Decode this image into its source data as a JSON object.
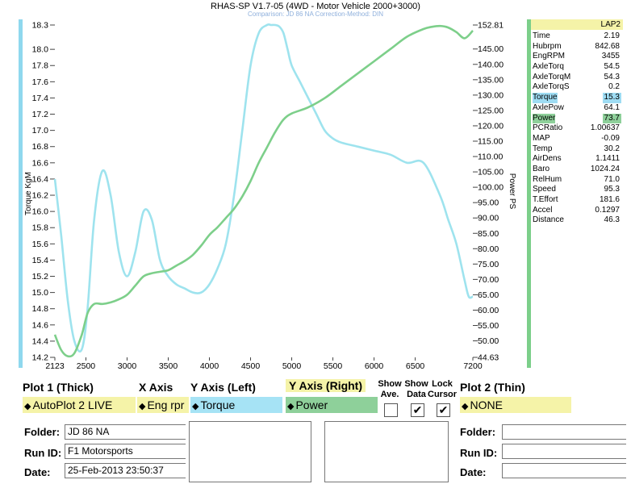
{
  "window": {
    "title": "RHAS-SP V1.7-05   (4WD - Motor Vehicle 2000+3000)",
    "subtitle": "Comparison: JD 86 NA    Correction-Method: DIN"
  },
  "chart_data": {
    "type": "line",
    "ylabel": "Torque KgM",
    "y2label": "Power PS",
    "xlim": [
      2123,
      7200
    ],
    "ylim": [
      14.2,
      18.3
    ],
    "y2lim": [
      44.63,
      152.81
    ],
    "x_ticks": [
      "2123",
      "2500",
      "3000",
      "3500",
      "4000",
      "4500",
      "5000",
      "5500",
      "6000",
      "6500",
      "7200"
    ],
    "y_ticks": [
      "18.3",
      "18.0",
      "17.8",
      "17.6",
      "17.4",
      "17.2",
      "17.0",
      "16.8",
      "16.6",
      "16.4",
      "16.2",
      "16.0",
      "15.8",
      "15.6",
      "15.4",
      "15.2",
      "15.0",
      "14.8",
      "14.6",
      "14.4",
      "14.2"
    ],
    "y2_ticks": [
      "152.81",
      "145.00",
      "140.00",
      "135.00",
      "130.00",
      "125.00",
      "120.00",
      "115.00",
      "110.00",
      "105.00",
      "100.00",
      "95.00",
      "90.00",
      "85.00",
      "80.00",
      "75.00",
      "70.00",
      "65.00",
      "60.00",
      "55.00",
      "50.00",
      "44.63"
    ],
    "series": [
      {
        "axis": "left",
        "color": "#9ee3ee",
        "x": [
          2123,
          2200,
          2280,
          2360,
          2450,
          2520,
          2600,
          2700,
          2800,
          2900,
          3000,
          3100,
          3200,
          3300,
          3400,
          3500,
          3600,
          3700,
          3800,
          3900,
          4000,
          4100,
          4200,
          4300,
          4400,
          4500,
          4600,
          4700,
          4750,
          4800,
          4850,
          4900,
          4950,
          5000,
          5100,
          5200,
          5300,
          5400,
          5500,
          5600,
          5800,
          6000,
          6200,
          6400,
          6600,
          6800,
          6900,
          7000,
          7100,
          7150,
          7200
        ],
        "values": [
          16.4,
          15.7,
          14.9,
          14.4,
          14.3,
          14.8,
          15.9,
          16.5,
          16.2,
          15.5,
          15.2,
          15.5,
          16.0,
          15.9,
          15.4,
          15.2,
          15.1,
          15.05,
          15.0,
          15.0,
          15.1,
          15.3,
          15.6,
          16.2,
          17.0,
          17.8,
          18.2,
          18.3,
          18.3,
          18.3,
          18.28,
          18.2,
          18.0,
          17.8,
          17.6,
          17.4,
          17.2,
          17.0,
          16.9,
          16.85,
          16.8,
          16.75,
          16.7,
          16.6,
          16.6,
          16.2,
          15.9,
          15.6,
          15.15,
          14.95,
          14.95
        ]
      },
      {
        "axis": "right",
        "color": "#7dcf8a",
        "x": [
          2123,
          2200,
          2280,
          2360,
          2450,
          2520,
          2600,
          2700,
          2800,
          2900,
          3000,
          3100,
          3200,
          3300,
          3400,
          3500,
          3600,
          3700,
          3800,
          3900,
          4000,
          4100,
          4200,
          4300,
          4400,
          4500,
          4600,
          4700,
          4800,
          4900,
          5000,
          5200,
          5400,
          5600,
          5800,
          6000,
          6200,
          6400,
          6600,
          6700,
          6800,
          6900,
          7000,
          7100,
          7200
        ],
        "values": [
          52,
          47,
          45,
          46,
          52,
          59,
          62,
          62,
          62.5,
          63.5,
          65,
          68,
          71,
          72,
          72.5,
          73,
          74.5,
          76,
          78,
          81,
          84.5,
          87,
          90,
          93,
          97,
          102,
          108,
          113,
          118,
          122,
          124,
          126,
          129,
          133,
          137,
          141,
          145,
          149,
          151.5,
          152.2,
          152.5,
          152,
          150.5,
          148.5,
          151
        ]
      }
    ]
  },
  "readout": {
    "lap": "LAP2",
    "rows": [
      {
        "k": "Time",
        "v": "2.19"
      },
      {
        "k": "Hubrpm",
        "v": "842.68"
      },
      {
        "k": "EngRPM",
        "v": "3455"
      },
      {
        "k": "AxleTorq",
        "v": "54.5"
      },
      {
        "k": "AxleTorqM",
        "v": "54.3"
      },
      {
        "k": "AxleTorqS",
        "v": "0.2"
      },
      {
        "k": "Torque",
        "v": "15.3",
        "hl": "blue"
      },
      {
        "k": "AxlePow",
        "v": "64.1"
      },
      {
        "k": "Power",
        "v": "73.7",
        "hl": "green"
      },
      {
        "k": "PCRatio",
        "v": "1.00637"
      },
      {
        "k": "MAP",
        "v": "-0.09"
      },
      {
        "k": "Temp",
        "v": "30.2"
      },
      {
        "k": "AirDens",
        "v": "1.1411"
      },
      {
        "k": "Baro",
        "v": "1024.24"
      },
      {
        "k": "RelHum",
        "v": "71.0"
      },
      {
        "k": "Speed",
        "v": "95.3"
      },
      {
        "k": "T.Effort",
        "v": "181.6"
      },
      {
        "k": "Accel",
        "v": "0.1297"
      },
      {
        "k": "Distance",
        "v": "46.3"
      }
    ]
  },
  "controls": {
    "plot1_label": "Plot 1 (Thick)",
    "xaxis_label": "X Axis",
    "yleft_label": "Y Axis (Left)",
    "yright_label": "Y Axis (Right)",
    "show_ave_label": "Show Ave.",
    "show_data_label": "Show Data",
    "lock_cursor_label": "Lock Cursor",
    "plot2_label": "Plot 2 (Thin)",
    "plot1_value": "AutoPlot 2 LIVE",
    "xaxis_value": "Eng rpr",
    "yleft_value": "Torque",
    "yright_value": "Power",
    "plot2_value": "NONE",
    "show_ave_checked": false,
    "show_data_checked": true,
    "lock_cursor_checked": true,
    "folder_label": "Folder:",
    "runid_label": "Run ID:",
    "date_label": "Date:",
    "folder_value": "JD 86 NA",
    "runid_value": "F1 Motorsports",
    "date_value": "25-Feb-2013  23:50:37",
    "folder2_value": "",
    "runid2_value": "",
    "date2_value": "",
    "check_glyph": "✔",
    "arrow_glyph": "◆",
    "colors": {
      "yellow": "#f5f3a8",
      "blue": "#a6e3f5",
      "green": "#8ed09a"
    }
  }
}
